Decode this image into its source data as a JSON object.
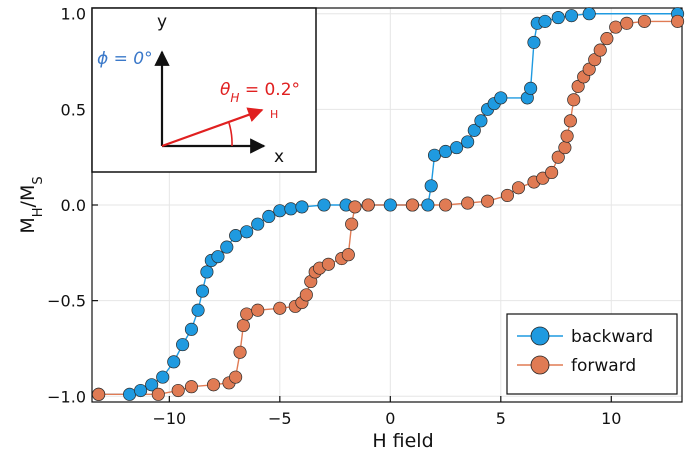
{
  "chart_data": {
    "type": "scatter",
    "xlabel": "H field",
    "ylabel": {
      "main": "M",
      "sub1": "H",
      "sep": "/M",
      "sub2": "S"
    },
    "xlim": [
      -13.5,
      13.2
    ],
    "ylim": [
      -1.03,
      1.03
    ],
    "xticks": [
      -10,
      -5,
      0,
      5,
      10
    ],
    "xtick_labels": [
      "−10",
      "−5",
      "0",
      "5",
      "10"
    ],
    "yticks": [
      -1.0,
      -0.5,
      0.0,
      0.5,
      1.0
    ],
    "ytick_labels": [
      "−1.0",
      "−0.5",
      "0.0",
      "0.5",
      "1.0"
    ],
    "grid": true,
    "legend": {
      "position": "bottom-right",
      "entries": [
        "backward",
        "forward"
      ]
    },
    "series": [
      {
        "name": "backward",
        "color": "#1f9ae0",
        "steps": [
          [
            -13.2,
            -0.99
          ],
          [
            -11.8,
            -0.99
          ],
          [
            -11.3,
            -0.97
          ],
          [
            -10.8,
            -0.94
          ],
          [
            -10.3,
            -0.9
          ],
          [
            -9.8,
            -0.82
          ],
          [
            -9.4,
            -0.73
          ],
          [
            -9.0,
            -0.65
          ],
          [
            -8.7,
            -0.55
          ],
          [
            -8.5,
            -0.45
          ],
          [
            -8.3,
            -0.35
          ],
          [
            -8.1,
            -0.29
          ],
          [
            -7.8,
            -0.27
          ],
          [
            -7.4,
            -0.22
          ],
          [
            -7.0,
            -0.16
          ],
          [
            -6.5,
            -0.14
          ],
          [
            -6.0,
            -0.1
          ],
          [
            -5.5,
            -0.06
          ],
          [
            -5.0,
            -0.03
          ],
          [
            -4.5,
            -0.02
          ],
          [
            -4.0,
            -0.01
          ],
          [
            -3.0,
            0.0
          ],
          [
            -2.0,
            0.0
          ],
          [
            -1.0,
            0.0
          ],
          [
            0.0,
            0.0
          ],
          [
            1.0,
            0.0
          ],
          [
            1.7,
            0.0
          ],
          [
            1.85,
            0.1
          ],
          [
            2.0,
            0.26
          ],
          [
            2.5,
            0.28
          ],
          [
            3.0,
            0.3
          ],
          [
            3.5,
            0.33
          ],
          [
            3.8,
            0.39
          ],
          [
            4.1,
            0.44
          ],
          [
            4.4,
            0.5
          ],
          [
            4.7,
            0.53
          ],
          [
            5.0,
            0.56
          ],
          [
            6.2,
            0.56
          ],
          [
            6.35,
            0.61
          ],
          [
            6.5,
            0.85
          ],
          [
            6.65,
            0.95
          ],
          [
            7.0,
            0.96
          ],
          [
            7.6,
            0.98
          ],
          [
            8.2,
            0.99
          ],
          [
            9.0,
            1.0
          ],
          [
            13.0,
            1.0
          ]
        ]
      },
      {
        "name": "forward",
        "color": "#e07b54",
        "steps": [
          [
            -13.2,
            -0.99
          ],
          [
            -10.5,
            -0.99
          ],
          [
            -9.6,
            -0.97
          ],
          [
            -9.0,
            -0.95
          ],
          [
            -8.0,
            -0.94
          ],
          [
            -7.3,
            -0.93
          ],
          [
            -7.0,
            -0.9
          ],
          [
            -6.8,
            -0.77
          ],
          [
            -6.65,
            -0.63
          ],
          [
            -6.5,
            -0.57
          ],
          [
            -6.0,
            -0.55
          ],
          [
            -5.0,
            -0.54
          ],
          [
            -4.3,
            -0.53
          ],
          [
            -4.0,
            -0.51
          ],
          [
            -3.8,
            -0.47
          ],
          [
            -3.6,
            -0.4
          ],
          [
            -3.4,
            -0.35
          ],
          [
            -3.2,
            -0.33
          ],
          [
            -2.8,
            -0.31
          ],
          [
            -2.2,
            -0.28
          ],
          [
            -1.9,
            -0.26
          ],
          [
            -1.75,
            -0.1
          ],
          [
            -1.6,
            -0.01
          ],
          [
            -1.0,
            0.0
          ],
          [
            1.0,
            0.0
          ],
          [
            2.5,
            0.0
          ],
          [
            3.5,
            0.01
          ],
          [
            4.4,
            0.02
          ],
          [
            5.3,
            0.05
          ],
          [
            5.8,
            0.09
          ],
          [
            6.5,
            0.12
          ],
          [
            6.9,
            0.14
          ],
          [
            7.3,
            0.17
          ],
          [
            7.6,
            0.25
          ],
          [
            7.9,
            0.3
          ],
          [
            8.0,
            0.36
          ],
          [
            8.15,
            0.44
          ],
          [
            8.3,
            0.55
          ],
          [
            8.5,
            0.62
          ],
          [
            8.75,
            0.67
          ],
          [
            9.0,
            0.71
          ],
          [
            9.25,
            0.76
          ],
          [
            9.5,
            0.81
          ],
          [
            9.8,
            0.87
          ],
          [
            10.2,
            0.93
          ],
          [
            10.7,
            0.95
          ],
          [
            11.5,
            0.96
          ],
          [
            13.0,
            0.96
          ]
        ]
      }
    ],
    "inset": {
      "phi_label": "ϕ = 0°",
      "theta_label": "θ",
      "theta_sub": "H",
      "theta_value": " = 0.2°",
      "h_label": "H",
      "x_label": "x",
      "y_label": "y",
      "phi_color": "#3a78c9",
      "theta_color": "#e02020"
    }
  }
}
